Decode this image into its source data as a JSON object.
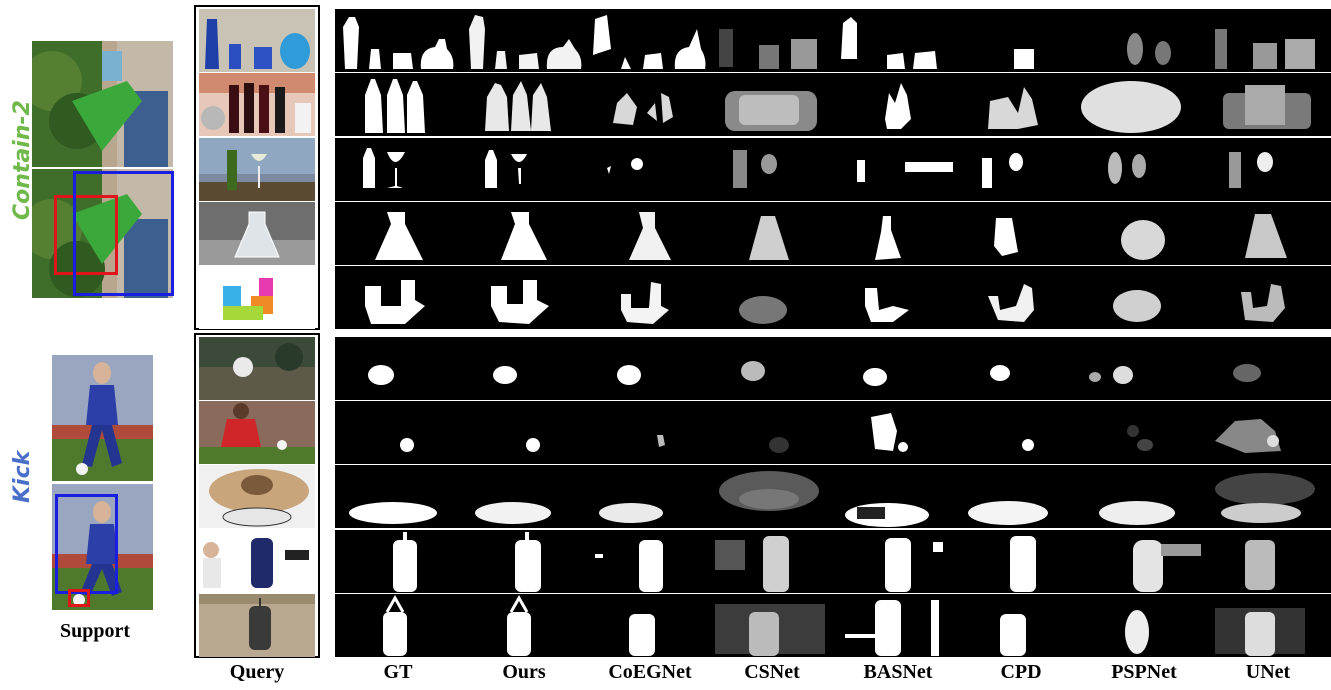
{
  "rows": [
    {
      "label": "Contain-2",
      "color": "#6fb84a"
    },
    {
      "label": "Kick",
      "color": "#4a6fc8"
    }
  ],
  "support_label": "Support",
  "columns": [
    "Query",
    "GT",
    "Ours",
    "CoEGNet",
    "CSNet",
    "BASNet",
    "CPD",
    "PSPNet",
    "UNet"
  ],
  "box_colors": {
    "red": "#e0151b",
    "blue": "#1a1ee0"
  }
}
